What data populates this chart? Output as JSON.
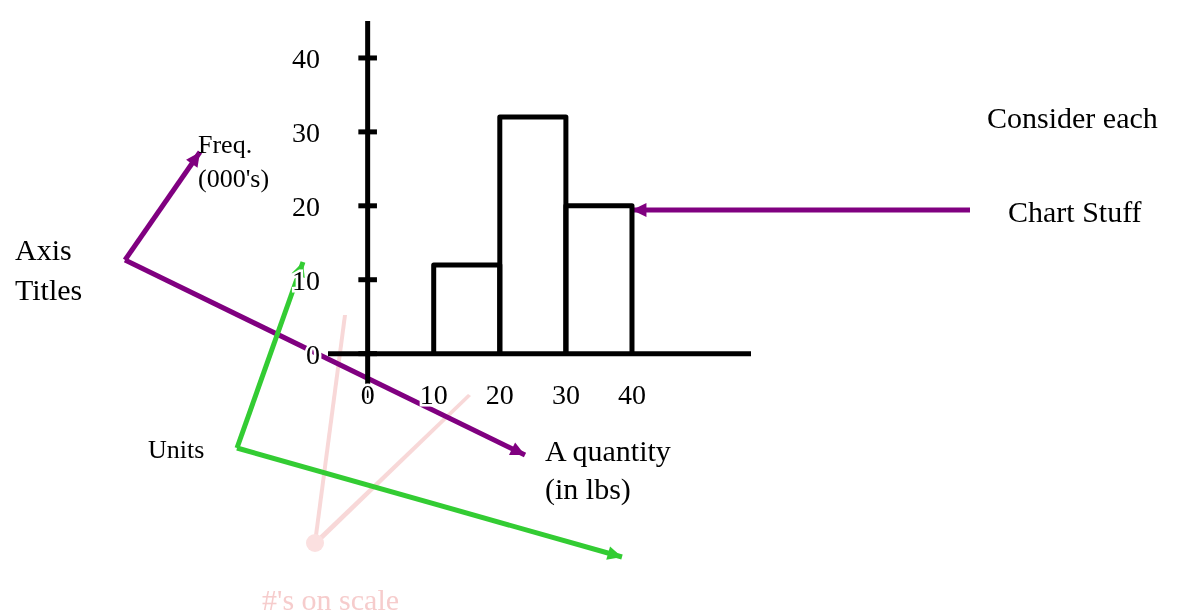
{
  "chart_data": {
    "type": "histogram",
    "xlabel": "A quantity\n(in lbs)",
    "ylabel": "Freq.\n(000's)",
    "bins": [
      10,
      20,
      30,
      40
    ],
    "values": [
      12,
      32,
      20
    ],
    "color": "#000000",
    "xlim": [
      -6,
      58
    ],
    "xticks": [
      0,
      10,
      20,
      30,
      40
    ],
    "ylim": [
      -6,
      45
    ],
    "yticks": [
      0,
      10,
      20,
      30,
      40
    ],
    "annotations": [
      "Consider each",
      "Chart Stuff",
      "Axis\nTitles",
      "Units",
      "#'s on scale"
    ]
  }
}
